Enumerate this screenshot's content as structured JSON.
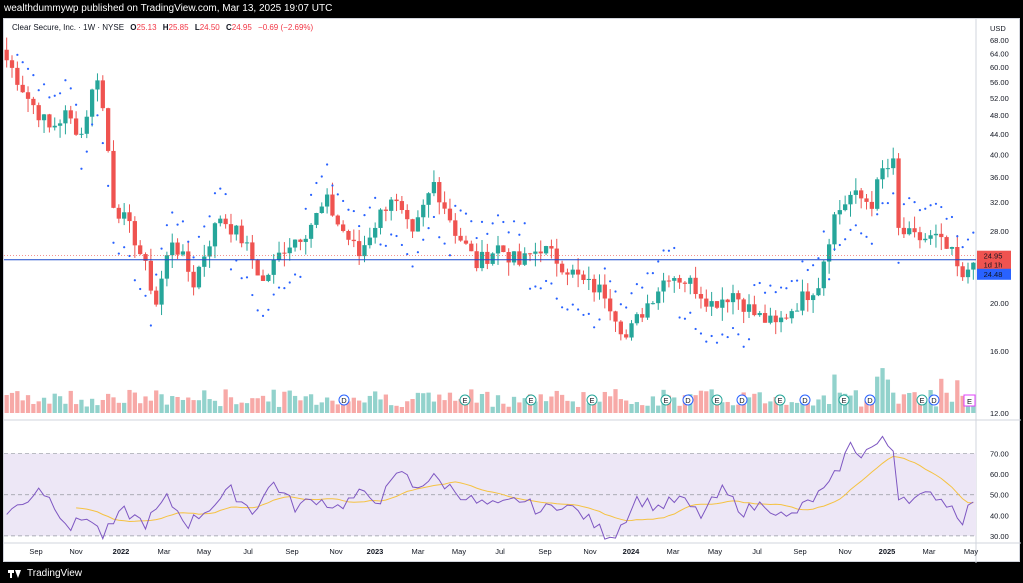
{
  "header": {
    "published_text": "wealthdummywp published on TradingView.com, Mar 13, 2025 19:07 UTC"
  },
  "footer": {
    "brand": "TradingView"
  },
  "legend": {
    "symbol": "Clear Secure, Inc. · 1W · NYSE",
    "open_label": "O",
    "open": "25.13",
    "high_label": "H",
    "high": "25.85",
    "low_label": "L",
    "low": "24.50",
    "close_label": "C",
    "close": "24.95",
    "change": "−0.69 (−2.69%)"
  },
  "colors": {
    "up": "#26a69a",
    "down": "#ef5350",
    "up_vol": "#92d2cc",
    "down_vol": "#f7a9a7",
    "sar": "#2962ff",
    "price_line": "#1848cc",
    "rsi": "#7e57c2",
    "rsi_ma": "#f5c242",
    "rsi_band": "#ede7f6"
  },
  "chart_data": [
    {
      "type": "candlestick",
      "title": "Clear Secure, Inc. · 1W · NYSE",
      "currency": "USD",
      "y_scale": "log",
      "ylim": [
        12,
        70
      ],
      "y_ticks": [
        "68.00",
        "64.00",
        "60.00",
        "56.00",
        "52.00",
        "48.00",
        "44.00",
        "40.00",
        "36.00",
        "32.00",
        "28.00",
        "24.00",
        "20.00",
        "16.00",
        "12.00"
      ],
      "x_ticks": [
        "Sep",
        "Nov",
        "2022",
        "Mar",
        "May",
        "Jul",
        "Sep",
        "Nov",
        "2023",
        "Mar",
        "May",
        "Jul",
        "Sep",
        "Nov",
        "2024",
        "Mar",
        "May",
        "Jul",
        "Sep",
        "Nov",
        "2025",
        "Mar",
        "May"
      ],
      "x_tick_bold": [
        "2022",
        "2023",
        "2024",
        "2025"
      ],
      "last_price": "24.95",
      "countdown": "1d 1h",
      "horizontal_line": "24.48",
      "close_waypoints": [
        [
          0,
          62
        ],
        [
          4,
          52
        ],
        [
          8,
          45
        ],
        [
          11,
          48
        ],
        [
          14,
          44
        ],
        [
          17,
          58
        ],
        [
          20,
          32
        ],
        [
          24,
          27
        ],
        [
          28,
          20
        ],
        [
          31,
          27
        ],
        [
          35,
          22
        ],
        [
          40,
          30
        ],
        [
          44,
          27
        ],
        [
          48,
          22
        ],
        [
          52,
          26
        ],
        [
          56,
          28
        ],
        [
          60,
          32
        ],
        [
          62,
          29
        ],
        [
          66,
          25
        ],
        [
          72,
          33
        ],
        [
          76,
          27
        ],
        [
          80,
          35
        ],
        [
          84,
          28
        ],
        [
          88,
          24
        ],
        [
          92,
          26
        ],
        [
          96,
          24
        ],
        [
          100,
          26
        ],
        [
          104,
          24
        ],
        [
          108,
          22
        ],
        [
          112,
          21
        ],
        [
          116,
          17
        ],
        [
          120,
          20
        ],
        [
          124,
          23
        ],
        [
          128,
          22
        ],
        [
          132,
          20
        ],
        [
          136,
          21
        ],
        [
          140,
          19
        ],
        [
          144,
          18
        ],
        [
          148,
          20
        ],
        [
          152,
          22
        ],
        [
          155,
          30
        ],
        [
          158,
          33
        ],
        [
          162,
          32
        ],
        [
          164,
          37
        ],
        [
          166,
          38
        ],
        [
          167,
          28
        ],
        [
          170,
          27
        ],
        [
          174,
          27
        ],
        [
          177,
          25
        ],
        [
          179,
          22
        ],
        [
          181,
          25
        ]
      ],
      "sar_dots": "Parabolic SAR dots above/below price",
      "events": [
        {
          "label": "D",
          "type": "dividend"
        },
        {
          "label": "E",
          "type": "earnings"
        },
        {
          "label": "E",
          "type": "earnings"
        },
        {
          "label": "E",
          "type": "earnings"
        },
        {
          "label": "E",
          "type": "earnings"
        },
        {
          "label": "D",
          "type": "dividend"
        },
        {
          "label": "E",
          "type": "earnings"
        },
        {
          "label": "D",
          "type": "dividend"
        },
        {
          "label": "E",
          "type": "earnings"
        },
        {
          "label": "D",
          "type": "dividend"
        },
        {
          "label": "E",
          "type": "earnings"
        },
        {
          "label": "D",
          "type": "dividend"
        },
        {
          "label": "E",
          "type": "earnings"
        },
        {
          "label": "D",
          "type": "dividend"
        },
        {
          "label": "E",
          "type": "earnings"
        },
        {
          "label": "D",
          "type": "dividend"
        },
        {
          "label": "E",
          "type": "earnings"
        },
        {
          "label": "E",
          "type": "earnings-upcoming"
        }
      ]
    },
    {
      "type": "line",
      "indicator": "RSI",
      "ylim": [
        28,
        80
      ],
      "y_ticks": [
        "70.00",
        "60.00",
        "50.00",
        "40.00",
        "30.00"
      ],
      "bands": {
        "upper": 70,
        "middle": 50,
        "lower": 30
      },
      "rsi_waypoints": [
        [
          0,
          42
        ],
        [
          3,
          45
        ],
        [
          6,
          54
        ],
        [
          9,
          45
        ],
        [
          12,
          34
        ],
        [
          15,
          40
        ],
        [
          18,
          30
        ],
        [
          22,
          42
        ],
        [
          26,
          36
        ],
        [
          30,
          48
        ],
        [
          34,
          36
        ],
        [
          38,
          44
        ],
        [
          42,
          52
        ],
        [
          46,
          42
        ],
        [
          50,
          56
        ],
        [
          54,
          44
        ],
        [
          58,
          48
        ],
        [
          62,
          44
        ],
        [
          66,
          50
        ],
        [
          70,
          48
        ],
        [
          74,
          62
        ],
        [
          76,
          54
        ],
        [
          80,
          58
        ],
        [
          84,
          52
        ],
        [
          88,
          46
        ],
        [
          92,
          44
        ],
        [
          96,
          48
        ],
        [
          100,
          42
        ],
        [
          104,
          46
        ],
        [
          108,
          40
        ],
        [
          112,
          31
        ],
        [
          114,
          31
        ],
        [
          118,
          48
        ],
        [
          122,
          44
        ],
        [
          126,
          48
        ],
        [
          130,
          40
        ],
        [
          134,
          52
        ],
        [
          138,
          42
        ],
        [
          142,
          46
        ],
        [
          146,
          38
        ],
        [
          150,
          46
        ],
        [
          154,
          54
        ],
        [
          158,
          74
        ],
        [
          160,
          70
        ],
        [
          164,
          76
        ],
        [
          166,
          72
        ],
        [
          167,
          50
        ],
        [
          170,
          48
        ],
        [
          174,
          50
        ],
        [
          177,
          44
        ],
        [
          179,
          38
        ],
        [
          181,
          48
        ]
      ]
    }
  ]
}
